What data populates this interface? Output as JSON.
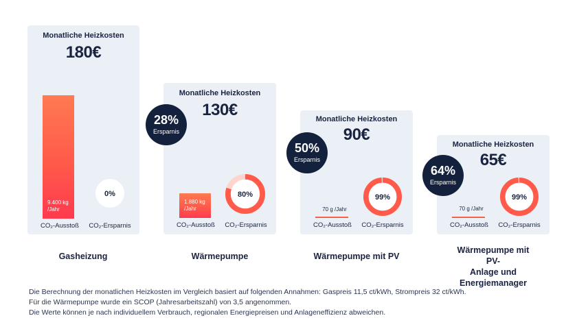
{
  "chart_data": {
    "type": "bar",
    "title_label": "Monatliche Heizkosten",
    "col_labels": [
      "CO₂-Ausstoß",
      "CO₂-Ersparnis"
    ],
    "badge_sub": "Ersparnis",
    "scenarios": [
      {
        "name": "Gasheizung",
        "cost_label": "180€",
        "cost": 180,
        "co2_label": "9.400 kg /Jahr",
        "co2_kg": 9400,
        "savings_label": "0%",
        "savings": 0,
        "badge": null
      },
      {
        "name": "Wärmepumpe",
        "cost_label": "130€",
        "cost": 130,
        "co2_label": "1.880 kg /Jahr",
        "co2_kg": 1880,
        "savings_label": "80%",
        "savings": 80,
        "badge": "28%"
      },
      {
        "name": "Wärmepumpe mit PV",
        "cost_label": "90€",
        "cost": 90,
        "co2_label": "70 g /Jahr",
        "co2_kg": 0.07,
        "savings_label": "99%",
        "savings": 99,
        "badge": "50%"
      },
      {
        "name": "Wärmepumpe mit PV-\nAnlage und Energiemanager",
        "cost_label": "65€",
        "cost": 65,
        "co2_label": "70 g /Jahr",
        "co2_kg": 0.07,
        "savings_label": "99%",
        "savings": 99,
        "badge": "64%"
      }
    ]
  },
  "footnotes": [
    "Die Berechnung der monatlichen Heizkosten im Vergleich basiert auf folgenden Annahmen: Gaspreis 11,5 ct/kWh, Strompreis 32 ct/kWh.",
    "Für die Wärmepumpe wurde ein SCOP (Jahresarbeitszahl) von 3,5 angenommen.",
    "Die Werte können je nach individuellem Verbrauch, regionalen Energiepreisen und Anlageneffizienz abweichen."
  ],
  "colors": {
    "card_bg": "#eaf0f5",
    "navy": "#14213d",
    "accent": "#ff5a4a",
    "accent_light": "#ffd4cc"
  }
}
